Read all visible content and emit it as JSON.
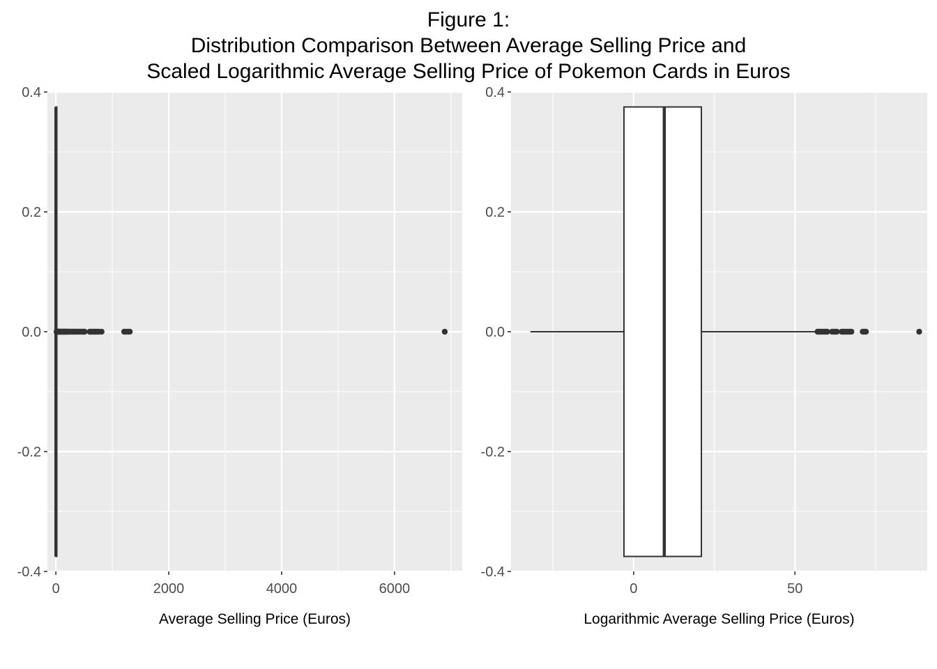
{
  "figure": {
    "title_lines": [
      "Figure 1:",
      "Distribution Comparison Between Average Selling Price and",
      "Scaled Logarithmic Average Selling Price of Pokemon Cards in Euros"
    ]
  },
  "colors": {
    "panel_background": "#EBEBEB",
    "gridline": "#FFFFFF",
    "box_stroke": "#333333",
    "box_fill": "#FFFFFF",
    "tick_text": "#4D4D4D",
    "axis_title_text": "#000000"
  },
  "chart_data": [
    {
      "type": "boxplot",
      "orientation": "horizontal",
      "title": "",
      "xlabel": "Average Selling Price (Euros)",
      "ylabel": "",
      "xlim": [
        -150,
        7200
      ],
      "ylim": [
        -0.4,
        0.4
      ],
      "x_ticks": [
        0,
        2000,
        4000,
        6000
      ],
      "x_tick_labels": [
        "0",
        "2000",
        "4000",
        "6000"
      ],
      "y_ticks": [
        0.4,
        0.2,
        0.0,
        -0.2,
        -0.4
      ],
      "y_tick_labels": [
        "0.4",
        "0.2",
        "0.0",
        "-0.2",
        "-0.4"
      ],
      "grid": true,
      "box": {
        "y_center": 0.0,
        "half_width": 0.375,
        "lower_whisker": 0.05,
        "q1": 0.6,
        "median": 1.5,
        "q3": 5.0,
        "upper_whisker": 11.5
      },
      "outliers_x": [
        12,
        15,
        20,
        25,
        30,
        35,
        40,
        50,
        60,
        70,
        80,
        90,
        100,
        110,
        120,
        130,
        140,
        150,
        160,
        170,
        180,
        190,
        200,
        215,
        230,
        250,
        270,
        290,
        310,
        330,
        350,
        370,
        400,
        420,
        450,
        470,
        490,
        510,
        600,
        620,
        650,
        680,
        700,
        730,
        760,
        810,
        1210,
        1240,
        1280,
        1310,
        6890
      ]
    },
    {
      "type": "boxplot",
      "orientation": "horizontal",
      "title": "",
      "xlabel": "Logarithmic Average Selling Price (Euros)",
      "ylabel": "",
      "xlim": [
        -38,
        91
      ],
      "ylim": [
        -0.4,
        0.4
      ],
      "x_ticks": [
        0,
        50
      ],
      "x_tick_labels": [
        "0",
        "50"
      ],
      "y_ticks": [
        0.4,
        0.2,
        0.0,
        -0.2,
        -0.4
      ],
      "y_tick_labels": [
        "0.4",
        "0.2",
        "0.0",
        "-0.2",
        "-0.4"
      ],
      "grid": true,
      "box": {
        "y_center": 0.0,
        "half_width": 0.375,
        "lower_whisker": -32.0,
        "q1": -3.0,
        "median": 9.5,
        "q3": 21.0,
        "upper_whisker": 56.5
      },
      "outliers_x": [
        57.0,
        57.5,
        58.0,
        58.5,
        59.0,
        59.5,
        60.0,
        61.5,
        62.0,
        62.5,
        63.0,
        64.5,
        65.0,
        65.5,
        66.0,
        66.5,
        67.0,
        67.5,
        71.0,
        71.5,
        72.0,
        88.5
      ]
    }
  ]
}
